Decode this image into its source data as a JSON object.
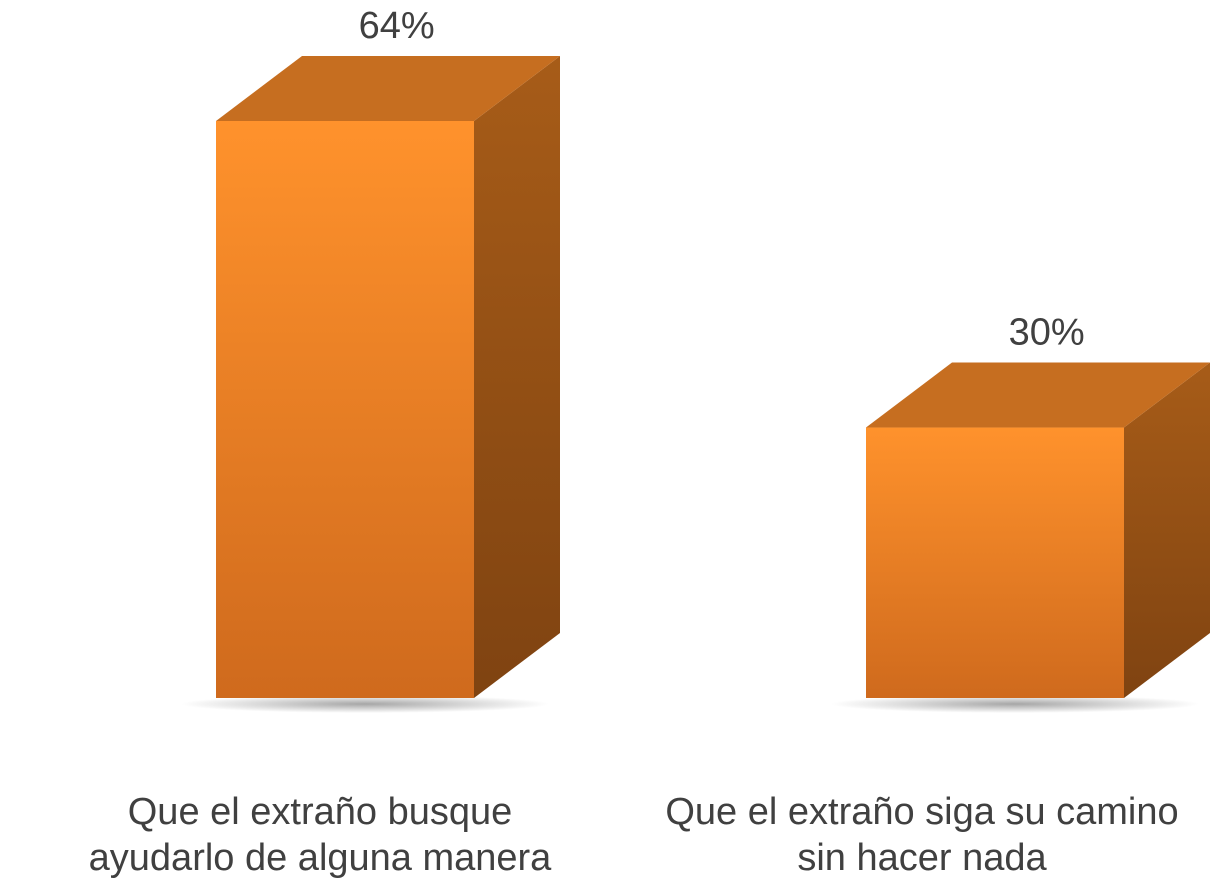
{
  "chart_data": {
    "type": "bar",
    "style": "3d-column",
    "categories": [
      [
        "Que el extraño busque",
        "ayudarlo de alguna manera"
      ],
      [
        "Que el extraño siga su camino",
        "sin hacer nada"
      ]
    ],
    "values": [
      64,
      30
    ],
    "data_labels": [
      "64%",
      "30%"
    ],
    "title": "",
    "xlabel": "",
    "ylabel": "",
    "ylim": [
      0,
      64
    ],
    "grid": false,
    "legend": "none",
    "colors": {
      "front_top": "#FF922C",
      "front_bottom": "#CF6A1D",
      "top": "#C66E20",
      "side_light": "#A75C18",
      "side_dark": "#7F4311",
      "label": "#404040"
    }
  }
}
